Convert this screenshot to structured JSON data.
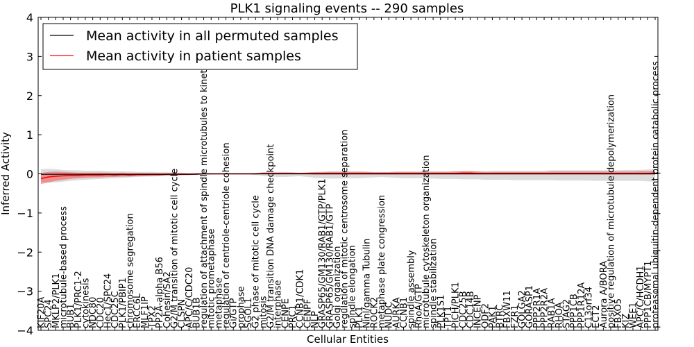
{
  "chart_data": {
    "type": "line",
    "title": "PLK1 signaling events -- 290 samples",
    "xlabel": "Cellular Entities",
    "ylabel": "Inferred Activity",
    "ylim": [
      -4,
      4
    ],
    "yticks": [
      4,
      3,
      2,
      1,
      0,
      -1,
      -2,
      -3,
      -4
    ],
    "ytick_labels": [
      "4",
      "3",
      "2",
      "1",
      "0",
      "−1",
      "−2",
      "−3",
      "−4"
    ],
    "legend": {
      "position": "top-left",
      "entries": [
        {
          "label": "Mean activity in all permuted samples",
          "color": "#000000"
        },
        {
          "label": "Mean activity in patient samples",
          "color": "#ff0000"
        }
      ]
    },
    "categories": [
      "KIF20A",
      "SPC24",
      "MKLP2/PLK1",
      "microtubule-based process",
      "BUB1",
      "PLK1/PRC1-2",
      "cytokinesis",
      "NDC80",
      "CDC20",
      "Hec1/SPC24",
      "CDC25C",
      "PLK1/PBIP1",
      "chromosome segregation",
      "ERCC6L",
      "MLF1IP",
      "TPX2",
      "PP2A-alpha B56",
      "Cohesin/SA2",
      "G2/M transition of mitotic cell cycle",
      "CLSPN",
      "APC/C/CDC20",
      "BUB1B",
      "regulation of attachment of spindle microtubules to kinetochore",
      "mitotic prometaphase",
      "metaphase",
      "regulation of centriole-centriole cohesion",
      "Gi/GTP",
      "prophase",
      "SGOL1",
      "G2 phase of mitotic cell cycle",
      "mitosis",
      "G2/M transition DNA damage checkpoint",
      "interphase",
      "CENPE",
      "PRC1",
      "CCNB1/CDK1",
      "CENPF",
      "NLP",
      "GRASP65/GM130/RAB1/GTP/PLK1",
      "GRASP65/GM130/RAB1/GTP",
      "Golgi organization",
      "regulation of mitotic centrosome separation",
      "spindle elongation",
      "PLK1",
      "Ninl/gamma Tubulin",
      "ROCK2",
      "metaphase plate congression",
      "NUDC",
      "AURKA",
      "CCNB1",
      "spindle assembly",
      "RhoA/GTP",
      "microtubule cytoskeleton organization",
      "spindle stabilization",
      "PLK1S1",
      "TPT1",
      "PICH/PLK1",
      "CDC25B",
      "CDC14B",
      "INCENP",
      "ODF2",
      "PAK1",
      "BTRC",
      "FBXW11",
      "FZR1",
      "GOLGA2",
      "GORASP1",
      "PPP2R1A",
      "PPP2R2A",
      "RAB1A",
      "RHOA",
      "STAG2",
      "PPP1CB",
      "PPP1R12A",
      "C13orf34",
      "ECT2",
      "Aurora A/BORA",
      "positive regulation of microtubule depolymerization",
      "FBXO5",
      "KIZ",
      "WEE1",
      "APC/C/HCDH1",
      "PPP1CB/MYPT1",
      "proteasomal ubiquitin-dependent protein catabolic process"
    ],
    "series": [
      {
        "name": "Mean activity in all permuted samples",
        "color": "#000000",
        "values": [
          -0.01,
          -0.01,
          -0.01,
          -0.01,
          -0.01,
          -0.01,
          -0.01,
          -0.01,
          -0.01,
          -0.01,
          -0.01,
          -0.01,
          -0.01,
          -0.01,
          -0.01,
          -0.01,
          -0.01,
          -0.01,
          -0.01,
          -0.01,
          -0.01,
          -0.01,
          0,
          0,
          0,
          0,
          0,
          0,
          0,
          0,
          0,
          0,
          0,
          0,
          0,
          0,
          0,
          0,
          0,
          0,
          0,
          0,
          0,
          0,
          0,
          0,
          0,
          0,
          0,
          0,
          0,
          0,
          0,
          0,
          0,
          0,
          0,
          0,
          0,
          0,
          0,
          0,
          0,
          0,
          0,
          0,
          0,
          0,
          0,
          0,
          0,
          0,
          0,
          0,
          0,
          0,
          0,
          0,
          0,
          0,
          0,
          0,
          0,
          0
        ],
        "band_upper": [
          0.12,
          0.13,
          0.12,
          0.1,
          0.09,
          0.09,
          0.08,
          0.08,
          0.08,
          0.07,
          0.07,
          0.06,
          0.06,
          0.05,
          0.05,
          0.05,
          0.04,
          0.04,
          0.03,
          0.03,
          0.02,
          0.02,
          0.02,
          0.01,
          0.01,
          0.01,
          0.01,
          0.01,
          0.01,
          0.02,
          0.04,
          0.05,
          0.05,
          0.05,
          0.04,
          0.03,
          0.04,
          0.05,
          0.06,
          0.07,
          0.07,
          0.07,
          0.07,
          0.07,
          0.06,
          0.05,
          0.05,
          0.05,
          0.06,
          0.06,
          0.06,
          0.06,
          0.06,
          0.07,
          0.07,
          0.07,
          0.07,
          0.07,
          0.07,
          0.07,
          0.07,
          0.08,
          0.08,
          0.08,
          0.08,
          0.08,
          0.08,
          0.08,
          0.08,
          0.09,
          0.09,
          0.09,
          0.09,
          0.09,
          0.09,
          0.09,
          0.09,
          0.09,
          0.09,
          0.1,
          0.1,
          0.1,
          0.11,
          0.12
        ],
        "band_lower": [
          -0.2,
          -0.22,
          -0.22,
          -0.2,
          -0.18,
          -0.16,
          -0.15,
          -0.14,
          -0.13,
          -0.12,
          -0.11,
          -0.1,
          -0.09,
          -0.08,
          -0.07,
          -0.07,
          -0.06,
          -0.05,
          -0.05,
          -0.04,
          -0.03,
          -0.03,
          -0.02,
          -0.02,
          -0.01,
          -0.01,
          -0.01,
          -0.01,
          -0.01,
          -0.03,
          -0.05,
          -0.07,
          -0.08,
          -0.08,
          -0.07,
          -0.06,
          -0.08,
          -0.1,
          -0.11,
          -0.12,
          -0.12,
          -0.12,
          -0.11,
          -0.11,
          -0.1,
          -0.09,
          -0.08,
          -0.09,
          -0.1,
          -0.11,
          -0.11,
          -0.11,
          -0.12,
          -0.12,
          -0.13,
          -0.13,
          -0.13,
          -0.14,
          -0.14,
          -0.14,
          -0.15,
          -0.15,
          -0.15,
          -0.15,
          -0.16,
          -0.16,
          -0.16,
          -0.16,
          -0.16,
          -0.16,
          -0.17,
          -0.17,
          -0.17,
          -0.17,
          -0.17,
          -0.18,
          -0.18,
          -0.18,
          -0.18,
          -0.18,
          -0.18,
          -0.18,
          -0.19,
          -0.2
        ]
      },
      {
        "name": "Mean activity in patient samples",
        "color": "#ff0000",
        "values": [
          -0.12,
          -0.08,
          -0.06,
          -0.05,
          -0.04,
          -0.04,
          -0.03,
          -0.03,
          -0.03,
          -0.02,
          -0.03,
          -0.02,
          -0.03,
          -0.02,
          -0.02,
          -0.02,
          -0.02,
          -0.01,
          -0.01,
          -0.01,
          -0.01,
          0,
          0,
          0,
          0,
          0,
          0,
          0,
          0,
          0,
          0.01,
          0.01,
          0.01,
          0.01,
          0.01,
          0.01,
          0.01,
          0.01,
          0.01,
          0.01,
          0.01,
          0.01,
          0.01,
          0.01,
          0.01,
          0.01,
          0.01,
          0.01,
          0.01,
          0.01,
          0.01,
          0.01,
          0.01,
          0.01,
          0.01,
          0.01,
          0.01,
          0.02,
          0.02,
          0.01,
          0.01,
          0.01,
          0.01,
          0.01,
          0.01,
          0.01,
          0.01,
          0.01,
          0.01,
          0.01,
          0.01,
          0.01,
          0.01,
          0.01,
          0.01,
          0.01,
          0.01,
          0.01,
          0.01,
          0.01,
          0.01,
          0.01,
          0.01,
          0.02
        ],
        "band_upper": [
          0.02,
          0.05,
          0.06,
          0.05,
          0.04,
          0.03,
          0.03,
          0.03,
          0.03,
          0.03,
          0.02,
          0.03,
          0.02,
          0.02,
          0.02,
          0.02,
          0.02,
          0.02,
          0.02,
          0.02,
          0.01,
          0.01,
          0.01,
          0.01,
          0.01,
          0.01,
          0.01,
          0.01,
          0.01,
          0.02,
          0.03,
          0.03,
          0.03,
          0.03,
          0.03,
          0.02,
          0.03,
          0.04,
          0.04,
          0.05,
          0.05,
          0.05,
          0.05,
          0.05,
          0.05,
          0.04,
          0.04,
          0.04,
          0.05,
          0.05,
          0.05,
          0.05,
          0.05,
          0.05,
          0.05,
          0.05,
          0.06,
          0.07,
          0.07,
          0.06,
          0.05,
          0.05,
          0.05,
          0.05,
          0.05,
          0.05,
          0.05,
          0.05,
          0.05,
          0.06,
          0.06,
          0.06,
          0.06,
          0.06,
          0.06,
          0.06,
          0.06,
          0.06,
          0.06,
          0.06,
          0.06,
          0.07,
          0.07,
          0.07
        ],
        "band_lower": [
          -0.26,
          -0.22,
          -0.18,
          -0.15,
          -0.13,
          -0.11,
          -0.1,
          -0.09,
          -0.09,
          -0.08,
          -0.08,
          -0.07,
          -0.07,
          -0.06,
          -0.06,
          -0.05,
          -0.05,
          -0.04,
          -0.04,
          -0.03,
          -0.03,
          -0.02,
          -0.01,
          -0.01,
          -0.01,
          -0.01,
          -0.01,
          -0.01,
          -0.01,
          -0.01,
          -0.01,
          -0.01,
          -0.01,
          -0.01,
          -0.01,
          -0.01,
          -0.01,
          -0.02,
          -0.02,
          -0.02,
          -0.02,
          -0.02,
          -0.02,
          -0.02,
          -0.02,
          -0.02,
          -0.02,
          -0.02,
          -0.02,
          -0.02,
          -0.02,
          -0.02,
          -0.02,
          -0.02,
          -0.02,
          -0.02,
          -0.02,
          -0.02,
          -0.02,
          -0.02,
          -0.02,
          -0.02,
          -0.02,
          -0.02,
          -0.02,
          -0.02,
          -0.02,
          -0.02,
          -0.02,
          -0.02,
          -0.02,
          -0.02,
          -0.02,
          -0.02,
          -0.02,
          -0.02,
          -0.02,
          -0.02,
          -0.02,
          -0.02,
          -0.02,
          -0.02,
          -0.02,
          -0.02
        ]
      }
    ]
  }
}
